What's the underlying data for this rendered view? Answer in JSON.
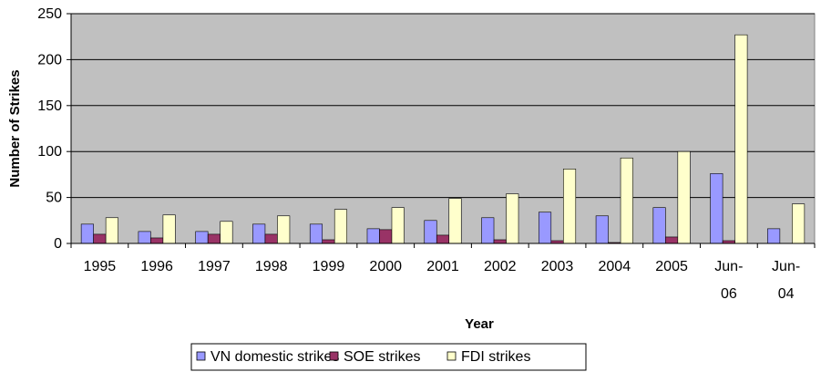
{
  "chart_data": {
    "type": "bar",
    "categories": [
      "1995",
      "1996",
      "1997",
      "1998",
      "1999",
      "2000",
      "2001",
      "2002",
      "2003",
      "2004",
      "2005",
      "Jun-06",
      "Jun-04"
    ],
    "series": [
      {
        "name": "VN domestic strikes",
        "values": [
          21,
          13,
          13,
          21,
          21,
          16,
          25,
          28,
          34,
          30,
          39,
          76,
          16
        ],
        "color": "#9999ff"
      },
      {
        "name": "SOE strikes",
        "values": [
          10,
          6,
          10,
          10,
          4,
          15,
          9,
          4,
          3,
          1,
          7,
          3,
          0
        ],
        "color": "#993366"
      },
      {
        "name": "FDI strikes",
        "values": [
          28,
          31,
          24,
          30,
          37,
          39,
          49,
          54,
          81,
          93,
          100,
          227,
          43
        ],
        "color": "#ffffcc"
      }
    ],
    "title": "",
    "xlabel": "Year",
    "ylabel": "Number of Strikes",
    "ylim": [
      0,
      250
    ],
    "yticks": [
      0,
      50,
      100,
      150,
      200,
      250
    ],
    "grid": true,
    "plot_background": "#c0c0c0",
    "legend_position": "bottom"
  }
}
